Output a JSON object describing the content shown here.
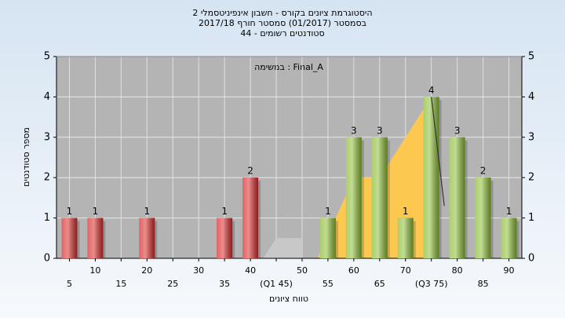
{
  "chart_data": {
    "type": "bar",
    "title": "היסטוגרמת ציונים בקורס - חשבון אינפיניטסמלי 2",
    "subtitle": "בסמסטר  (01/2017)  סמסטר חורף 2017/18",
    "subtitle2": "44 - סטודנטים רשומים",
    "annotation": "במשימה : Final_A",
    "y_label": "מספר סטודנטים",
    "x_label": "טווח ציונים",
    "categories": [
      "5",
      "10",
      "15",
      "20",
      "25",
      "30",
      "35",
      "40",
      "(Q1 45)",
      "50",
      "55",
      "60",
      "65",
      "70",
      "(Q3 75)",
      "80",
      "85",
      "90"
    ],
    "values": [
      1,
      1,
      0,
      1,
      0,
      0,
      1,
      2,
      0,
      0,
      1,
      3,
      3,
      1,
      4,
      3,
      2,
      1
    ],
    "colors": [
      "#d93030",
      "#d93030",
      "#d93030",
      "#d93030",
      "#d93030",
      "#d93030",
      "#d93030",
      "#d93030",
      "#d93030",
      "#d93030",
      "#8fbf3a",
      "#8fbf3a",
      "#8fbf3a",
      "#8fbf3a",
      "#8fbf3a",
      "#8fbf3a",
      "#8fbf3a",
      "#8fbf3a"
    ],
    "ylim": [
      0,
      5
    ],
    "yticks": [
      0,
      1,
      2,
      3,
      4,
      5
    ],
    "y2lim": [
      0,
      5
    ],
    "y2ticks": [
      0,
      1,
      2,
      3,
      4,
      5
    ],
    "grid": true,
    "areas": [
      {
        "color": "#c8c8c8",
        "x": [
          42.5,
          45,
          50,
          50
        ],
        "values": [
          0,
          0.5,
          0.5,
          0
        ]
      },
      {
        "color": "#fcc850",
        "x": [
          53,
          60,
          65,
          75,
          75
        ],
        "values": [
          0,
          2,
          2,
          4,
          0
        ]
      }
    ],
    "line": {
      "color": "#333333",
      "x": [
        75,
        77.5
      ],
      "values": [
        4,
        1.3
      ]
    }
  }
}
